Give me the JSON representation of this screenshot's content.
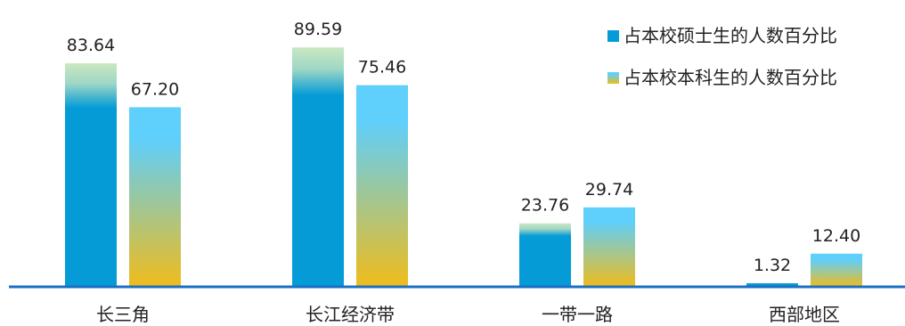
{
  "chart_data": {
    "type": "bar",
    "categories": [
      "长三角",
      "长江经济带",
      "一带一路",
      "西部地区"
    ],
    "series": [
      {
        "name": "占本校硕士生的人数百分比",
        "values": [
          83.64,
          89.59,
          23.76,
          1.32
        ],
        "value_labels": [
          "83.64",
          "89.59",
          "23.76",
          "1.32"
        ],
        "colors": {
          "top": "#c9e8c0",
          "main": "#049bd6"
        }
      },
      {
        "name": "占本校本科生的人数百分比",
        "values": [
          67.2,
          75.46,
          29.74,
          12.4
        ],
        "value_labels": [
          "67.20",
          "75.46",
          "29.74",
          "12.40"
        ],
        "colors": {
          "top": "#5fcffb",
          "bottom": "#f0bc1a"
        }
      }
    ],
    "ylim": [
      0,
      100
    ],
    "legend_position": "top-right",
    "grid": false,
    "axis_color": "#1a6fc4"
  }
}
